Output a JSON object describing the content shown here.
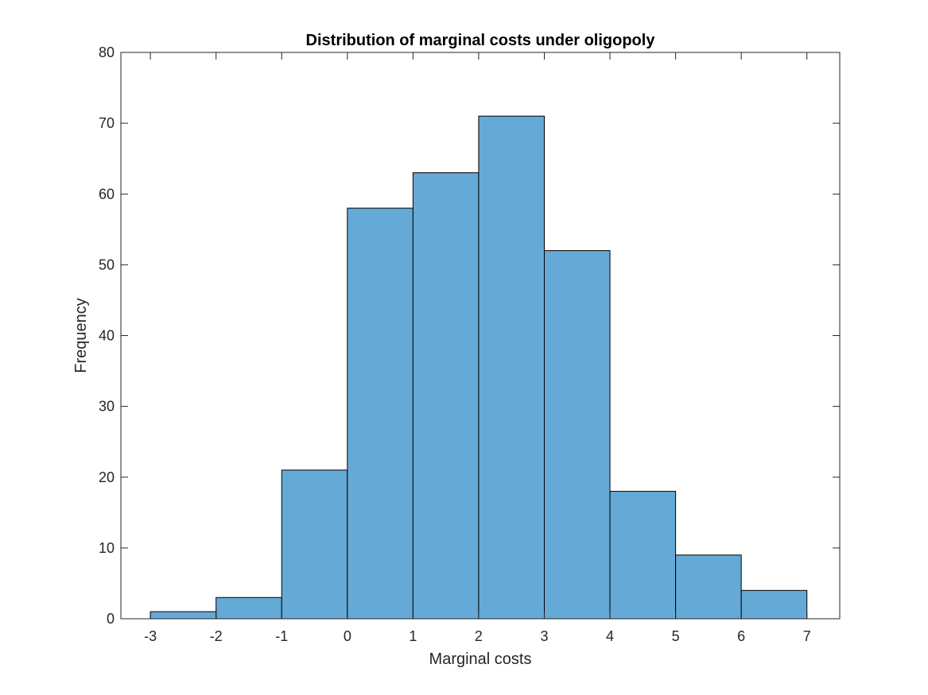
{
  "chart_data": {
    "type": "bar",
    "subtype": "histogram",
    "title": "Distribution of marginal costs under oligopoly",
    "xlabel": "Marginal costs",
    "ylabel": "Frequency",
    "bin_edges": [
      -3,
      -2,
      -1,
      0,
      1,
      2,
      3,
      4,
      5,
      6,
      7
    ],
    "values": [
      1,
      3,
      21,
      58,
      63,
      71,
      52,
      18,
      9,
      4
    ],
    "xlim": [
      -3.45,
      7.5
    ],
    "ylim": [
      0,
      80
    ],
    "xticks": [
      -3,
      -2,
      -1,
      0,
      1,
      2,
      3,
      4,
      5,
      6,
      7
    ],
    "xtick_labels": [
      "-3",
      "-2",
      "-1",
      "0",
      "1",
      "2",
      "3",
      "4",
      "5",
      "6",
      "7"
    ],
    "yticks": [
      0,
      10,
      20,
      30,
      40,
      50,
      60,
      70,
      80
    ],
    "ytick_labels": [
      "0",
      "10",
      "20",
      "30",
      "40",
      "50",
      "60",
      "70",
      "80"
    ],
    "grid": false,
    "legend": "none",
    "colors": {
      "bar_fill": "#65a9d7",
      "bar_edge": "#000000",
      "axes": "#262626"
    }
  }
}
